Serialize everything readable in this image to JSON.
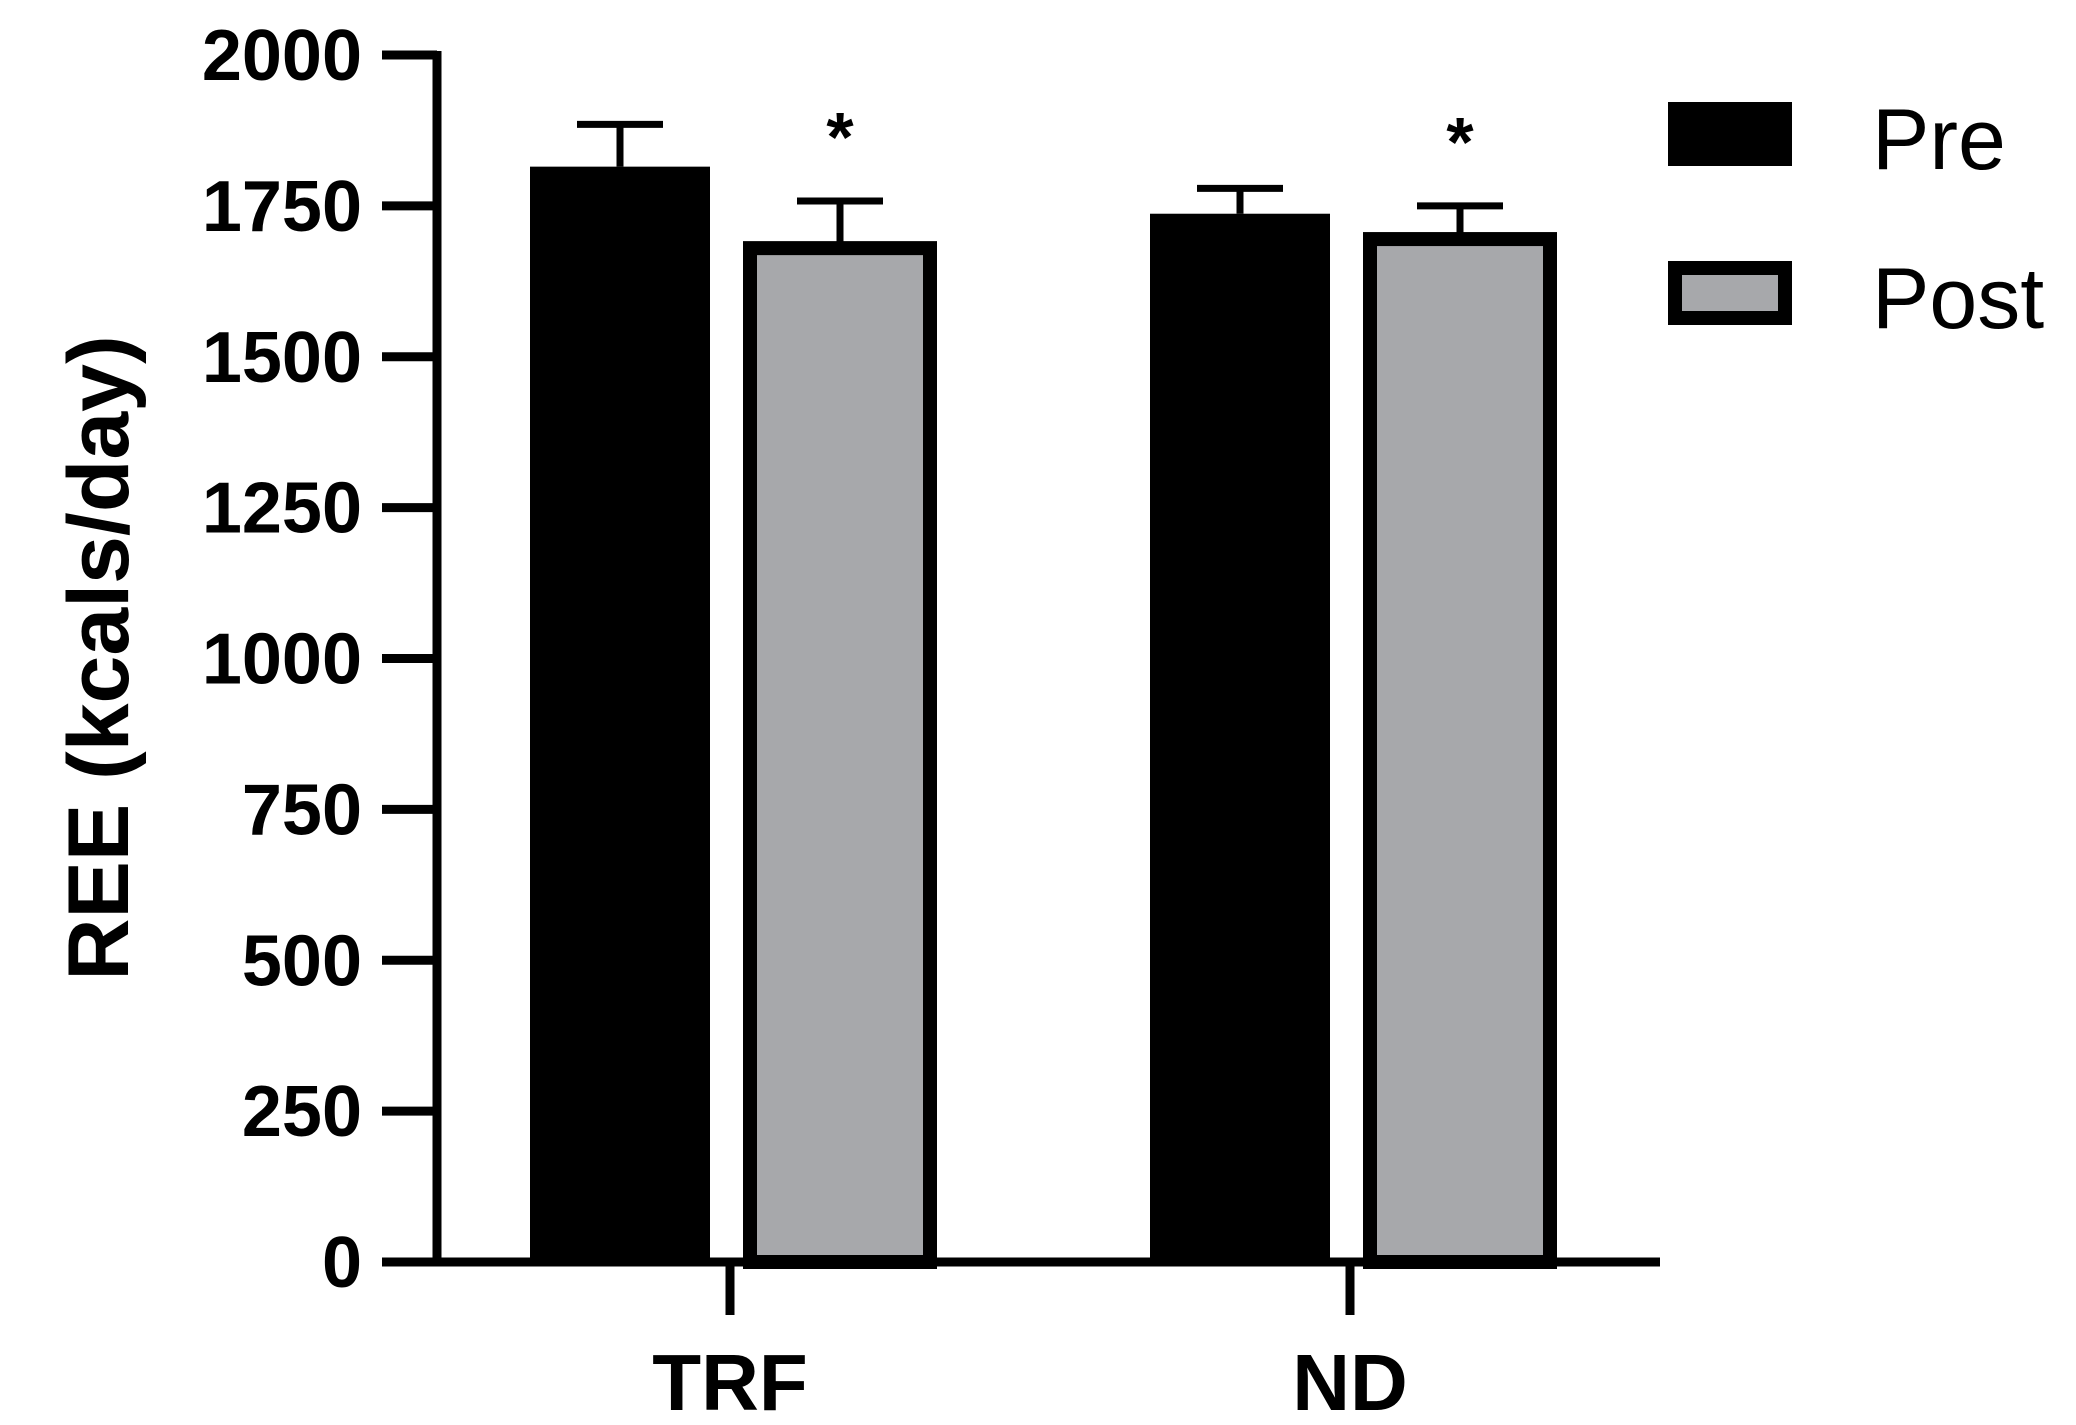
{
  "chart_data": {
    "type": "bar",
    "categories": [
      "TRF",
      "ND"
    ],
    "series": [
      {
        "name": "Pre",
        "values": [
          1815,
          1737
        ],
        "errors": [
          70,
          42
        ],
        "color": "#000000",
        "significance": [
          "",
          ""
        ]
      },
      {
        "name": "Post",
        "values": [
          1680,
          1695
        ],
        "errors": [
          78,
          55
        ],
        "color": "#a7a8ab",
        "significance": [
          "*",
          "*"
        ]
      }
    ],
    "ylabel": "REE (kcals/day)",
    "xlabel": "",
    "ylim": [
      0,
      2000
    ],
    "yticks": [
      0,
      250,
      500,
      750,
      1000,
      1250,
      1500,
      1750,
      2000
    ],
    "legend": "top-right",
    "grid": false
  }
}
